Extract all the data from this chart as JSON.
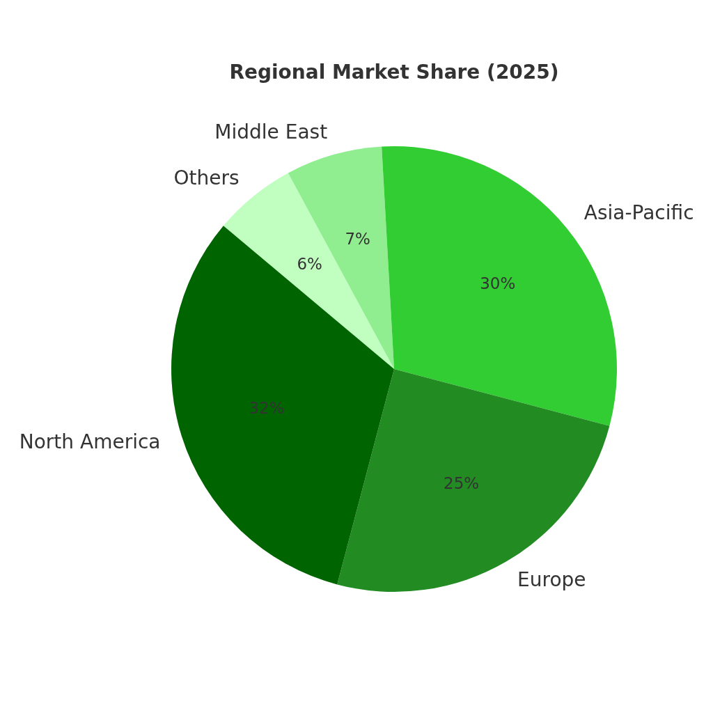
{
  "chart_data": {
    "type": "pie",
    "title": "Regional Market Share (2025)",
    "categories": [
      "Others",
      "Middle East",
      "Asia-Pacific",
      "Europe",
      "North America"
    ],
    "values": [
      6,
      7,
      30,
      25,
      32
    ],
    "colors": [
      "#c1ffc1",
      "#90ee90",
      "#32cd32",
      "#228b22",
      "#006400"
    ],
    "value_labels": [
      "6%",
      "7%",
      "30%",
      "25%",
      "32%"
    ]
  }
}
